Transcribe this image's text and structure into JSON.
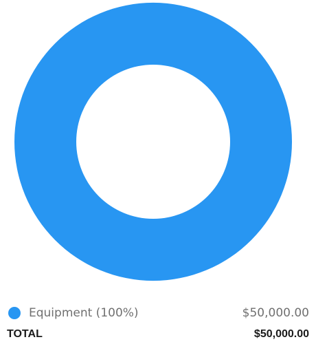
{
  "chart_data": {
    "type": "pie",
    "donut": true,
    "series": [
      {
        "name": "Equipment",
        "percent_label": "(100%)",
        "value": 50000,
        "value_label": "$50,000.00",
        "color": "#2896f2"
      }
    ]
  },
  "legend": {
    "items": [
      {
        "label": "Equipment (100%)",
        "amount": "$50,000.00",
        "color": "#2896f2"
      }
    ]
  },
  "total": {
    "label": "TOTAL",
    "amount": "$50,000.00"
  }
}
